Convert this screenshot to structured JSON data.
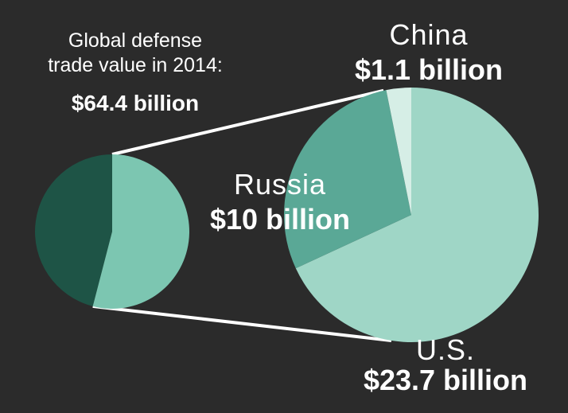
{
  "chart_data": {
    "type": "pie-of-pie",
    "title": "Global defense trade value in 2014:",
    "total": 64.4,
    "total_label": "$64.4 billion",
    "categories": [
      "U.S.",
      "Russia",
      "China"
    ],
    "values": [
      23.7,
      10,
      1.1
    ],
    "value_labels": [
      "$23.7 billion",
      "$10 billion",
      "$1.1 billion"
    ],
    "colors": [
      "#9fd6c6",
      "#5aa896",
      "#d6eee6"
    ],
    "total_color": "#1e5446",
    "share_color": "#7cc6b1"
  }
}
